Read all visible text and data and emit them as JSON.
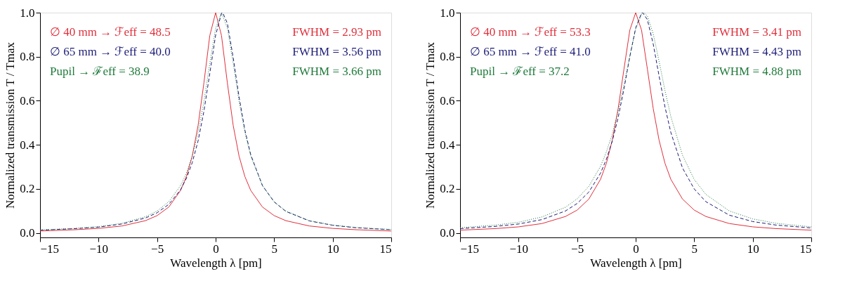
{
  "chart_data": [
    {
      "type": "line",
      "xlabel": "Wavelength  λ  [pm]",
      "ylabel": "Normalized transmission   T / Tmax",
      "xlim": [
        -15,
        15
      ],
      "xticks": [
        {
          "value": -15,
          "label": "−15"
        },
        {
          "value": -10,
          "label": "−10"
        },
        {
          "value": -5,
          "label": "−5"
        },
        0,
        5,
        10,
        15
      ],
      "ylim": [
        -0.02,
        1.0
      ],
      "yticks": [
        {
          "value": 0,
          "label": "0.0"
        },
        {
          "value": 0.2,
          "label": "0.2"
        },
        {
          "value": 0.4,
          "label": "0.4"
        },
        {
          "value": 0.6,
          "label": "0.6"
        },
        {
          "value": 0.8,
          "label": "0.8"
        },
        {
          "value": 1.0,
          "label": "1.0"
        }
      ],
      "annotations": [
        "∅  40 mm  →  ℱeff = 48.5",
        "∅  65 mm  →  ℱeff = 40.0",
        "Pupil  →  ℱeff = 38.9",
        "FWHM = 2.93 pm",
        "FWHM = 3.56 pm",
        "FWHM = 3.66 pm"
      ],
      "series": [
        {
          "color": "#e0303c",
          "line_style": "solid",
          "x": [
            -15,
            -12,
            -10,
            -8,
            -6,
            -5,
            -4,
            -3,
            -2.5,
            -2,
            -1.5,
            -1,
            -0.5,
            0,
            0.5,
            1,
            1.5,
            2,
            2.5,
            3,
            4,
            5,
            6,
            8,
            10,
            12,
            15
          ],
          "values": [
            0.009,
            0.015,
            0.021,
            0.032,
            0.056,
            0.079,
            0.118,
            0.193,
            0.256,
            0.349,
            0.488,
            0.682,
            0.896,
            1.0,
            0.896,
            0.682,
            0.488,
            0.349,
            0.256,
            0.193,
            0.118,
            0.079,
            0.056,
            0.032,
            0.021,
            0.015,
            0.009
          ]
        },
        {
          "color": "#1c1c78",
          "line_style": "dashed",
          "x": [
            -15,
            -12,
            -10,
            -8,
            -6,
            -5,
            -4,
            -3,
            -2.5,
            -2,
            -1.5,
            -1,
            -0.5,
            0,
            0.5,
            0.6,
            1,
            1.5,
            2,
            2.5,
            3,
            4,
            5,
            6,
            8,
            10,
            12,
            15
          ],
          "values": [
            0.013,
            0.02,
            0.027,
            0.041,
            0.068,
            0.092,
            0.13,
            0.196,
            0.248,
            0.319,
            0.418,
            0.553,
            0.724,
            0.898,
            0.997,
            1.0,
            0.952,
            0.796,
            0.618,
            0.467,
            0.355,
            0.215,
            0.141,
            0.098,
            0.055,
            0.035,
            0.024,
            0.015
          ]
        },
        {
          "color": "#1f7a3a",
          "line_style": "dotted",
          "x": [
            -15,
            -12,
            -10,
            -8,
            -6,
            -5,
            -4,
            -3,
            -2.5,
            -2,
            -1.5,
            -1,
            -0.5,
            0,
            0.5,
            1,
            1.5,
            2,
            2.5,
            3,
            4,
            5,
            6,
            8,
            10,
            12,
            15
          ],
          "values": [
            0.014,
            0.021,
            0.029,
            0.044,
            0.074,
            0.1,
            0.142,
            0.215,
            0.271,
            0.349,
            0.456,
            0.598,
            0.77,
            0.93,
            1.0,
            0.93,
            0.77,
            0.598,
            0.456,
            0.349,
            0.215,
            0.142,
            0.1,
            0.056,
            0.036,
            0.025,
            0.016
          ]
        }
      ]
    },
    {
      "type": "line",
      "xlabel": "Wavelength  λ  [pm]",
      "ylabel": "Normalized transmission   T / Tmax",
      "xlim": [
        -15,
        15
      ],
      "xticks": [
        {
          "value": -15,
          "label": "−15"
        },
        {
          "value": -10,
          "label": "−10"
        },
        {
          "value": -5,
          "label": "−5"
        },
        0,
        5,
        10,
        15
      ],
      "ylim": [
        -0.02,
        1.0
      ],
      "yticks": [
        {
          "value": 0,
          "label": "0.0"
        },
        {
          "value": 0.2,
          "label": "0.2"
        },
        {
          "value": 0.4,
          "label": "0.4"
        },
        {
          "value": 0.6,
          "label": "0.6"
        },
        {
          "value": 0.8,
          "label": "0.8"
        },
        {
          "value": 1.0,
          "label": "1.0"
        }
      ],
      "annotations": [
        "∅  40 mm  →  ℱeff = 53.3",
        "∅  65 mm  →  ℱeff = 41.0",
        "Pupil  →  ℱeff = 37.2",
        "FWHM = 3.41 pm",
        "FWHM = 4.43 pm",
        "FWHM = 4.88 pm"
      ],
      "series": [
        {
          "color": "#e0303c",
          "line_style": "solid",
          "x": [
            -15,
            -12,
            -10,
            -8,
            -6,
            -5,
            -4,
            -3,
            -2.5,
            -2,
            -1.5,
            -1,
            -0.5,
            0,
            0.5,
            1,
            1.5,
            2,
            2.5,
            3,
            4,
            5,
            6,
            8,
            10,
            12,
            15
          ],
          "values": [
            0.013,
            0.02,
            0.028,
            0.043,
            0.075,
            0.104,
            0.154,
            0.244,
            0.317,
            0.421,
            0.564,
            0.744,
            0.921,
            1.0,
            0.921,
            0.744,
            0.564,
            0.421,
            0.317,
            0.244,
            0.154,
            0.104,
            0.075,
            0.043,
            0.028,
            0.02,
            0.013
          ]
        },
        {
          "color": "#1c1c78",
          "line_style": "dashed",
          "x": [
            -15,
            -12,
            -10,
            -8,
            -6,
            -5,
            -4,
            -3,
            -2.5,
            -2,
            -1.5,
            -1,
            -0.5,
            0,
            0.5,
            0.6,
            1,
            1.5,
            2,
            2.5,
            3,
            4,
            5,
            6,
            8,
            10,
            12,
            15
          ],
          "values": [
            0.02,
            0.03,
            0.041,
            0.061,
            0.1,
            0.134,
            0.186,
            0.272,
            0.335,
            0.417,
            0.523,
            0.654,
            0.8,
            0.931,
            0.998,
            1.0,
            0.968,
            0.857,
            0.712,
            0.573,
            0.457,
            0.295,
            0.2,
            0.142,
            0.081,
            0.052,
            0.036,
            0.023
          ]
        },
        {
          "color": "#1f7a3a",
          "line_style": "dotted",
          "x": [
            -15,
            -12,
            -10,
            -8,
            -6,
            -5,
            -4,
            -3,
            -2.5,
            -2,
            -1.5,
            -1,
            -0.5,
            0,
            0.5,
            0.7,
            1,
            1.5,
            2,
            2.5,
            3,
            4,
            5,
            6,
            8,
            10,
            12,
            15
          ],
          "values": [
            0.024,
            0.036,
            0.049,
            0.073,
            0.117,
            0.155,
            0.212,
            0.303,
            0.368,
            0.449,
            0.552,
            0.673,
            0.805,
            0.924,
            0.993,
            1.0,
            0.985,
            0.903,
            0.779,
            0.647,
            0.529,
            0.353,
            0.243,
            0.175,
            0.1,
            0.064,
            0.044,
            0.028
          ]
        }
      ]
    }
  ]
}
